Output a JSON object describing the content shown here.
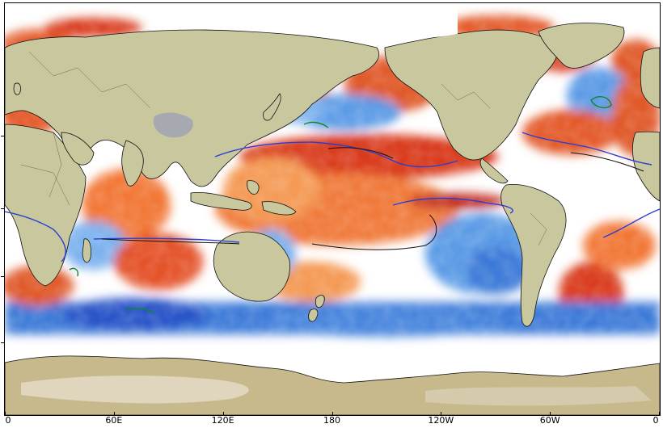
{
  "map": {
    "projection": "equirectangular, centered 180",
    "variable_shown_as": "sea surface temperature anomaly shading",
    "colors": {
      "ocean_neutral": "#ffffff",
      "warm_strong": "#c0281a",
      "warm_mid": "#f26b30",
      "warm_light": "#fbc58a",
      "cool_light": "#b5d6f5",
      "cool_mid": "#5b9be6",
      "cool_strong": "#2a55c8",
      "land": "#c9c79e",
      "land_dark": "#a9b27a",
      "ice_antarctica": "#c8b98c",
      "contour_blue": "#2b3fd0",
      "contour_green": "#0a8a2a",
      "coast": "#111111"
    }
  },
  "x_axis": {
    "ticks": [
      "0",
      "60E",
      "120E",
      "180",
      "120W",
      "60W",
      "0"
    ]
  }
}
